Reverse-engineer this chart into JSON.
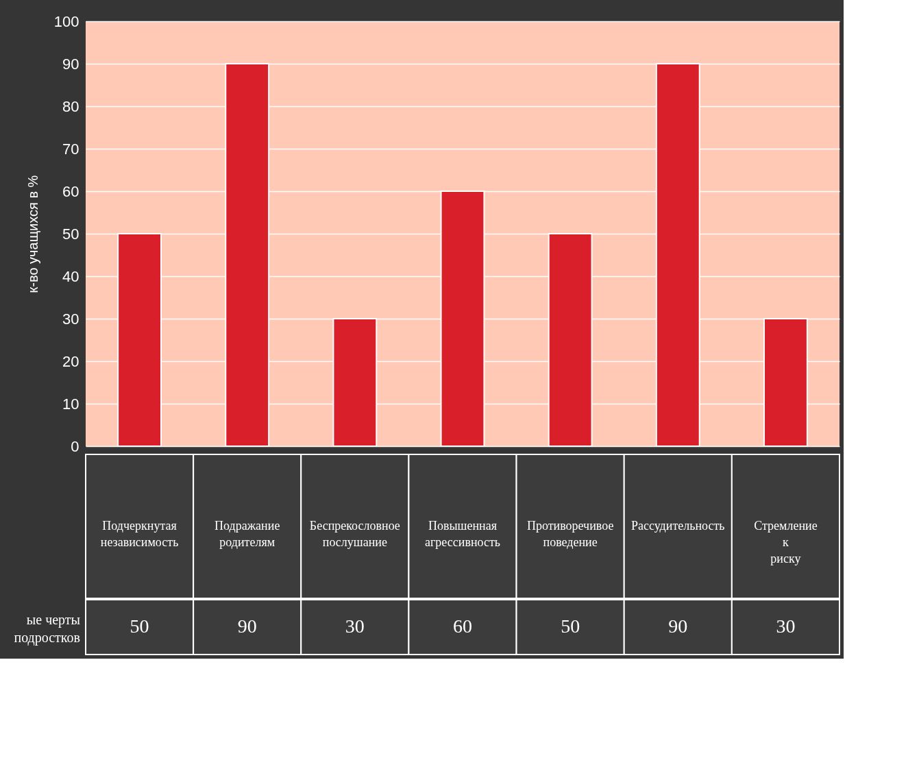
{
  "chart_data": {
    "type": "bar",
    "ylabel": "к-во учащихся в %",
    "categories": [
      "Подчеркнутая независимость",
      "Подражание родителям",
      "Беспрекословное послушание",
      "Повышенная агрессивность",
      "Противоречивое поведение",
      "Рассудительность",
      "Стремление к риску"
    ],
    "series": [
      {
        "name": "ые черты подростков",
        "color": "#d91f2a",
        "values": [
          50,
          90,
          30,
          60,
          50,
          90,
          30
        ]
      }
    ],
    "ylim": [
      0,
      100
    ],
    "yticks": [
      0,
      10,
      20,
      30,
      40,
      50,
      60,
      70,
      80,
      90,
      100
    ],
    "grid": true,
    "legend": false,
    "data_labels": true
  }
}
